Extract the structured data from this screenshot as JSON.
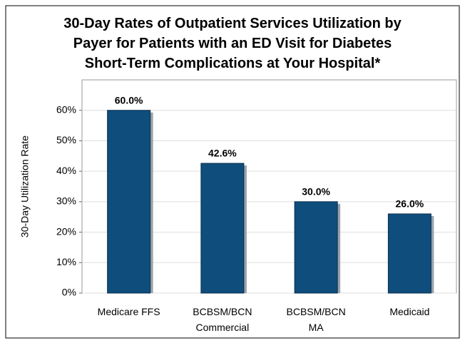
{
  "chart_data": {
    "type": "bar",
    "title": "30-Day Rates of Outpatient Services Utilization by\nPayer for Patients with an ED Visit for Diabetes\nShort-Term Complications  at Your Hospital*",
    "y_label": "30-Day Utilization Rate",
    "categories": [
      "Medicare FFS",
      "BCBSM/BCN\nCommercial",
      "BCBSM/BCN\nMA",
      "Medicaid"
    ],
    "values": [
      60.0,
      42.6,
      30.0,
      26.0
    ],
    "value_labels": [
      "60.0%",
      "42.6%",
      "30.0%",
      "26.0%"
    ],
    "color": "#0f4d7c",
    "ylim": [
      0,
      70
    ],
    "yticks": [
      {
        "value": 0,
        "label": "0%"
      },
      {
        "value": 10,
        "label": "10%"
      },
      {
        "value": 20,
        "label": "20%"
      },
      {
        "value": 30,
        "label": "30%"
      },
      {
        "value": 40,
        "label": "40%"
      },
      {
        "value": 50,
        "label": "50%"
      },
      {
        "value": 60,
        "label": "60%"
      }
    ],
    "grid": true
  }
}
